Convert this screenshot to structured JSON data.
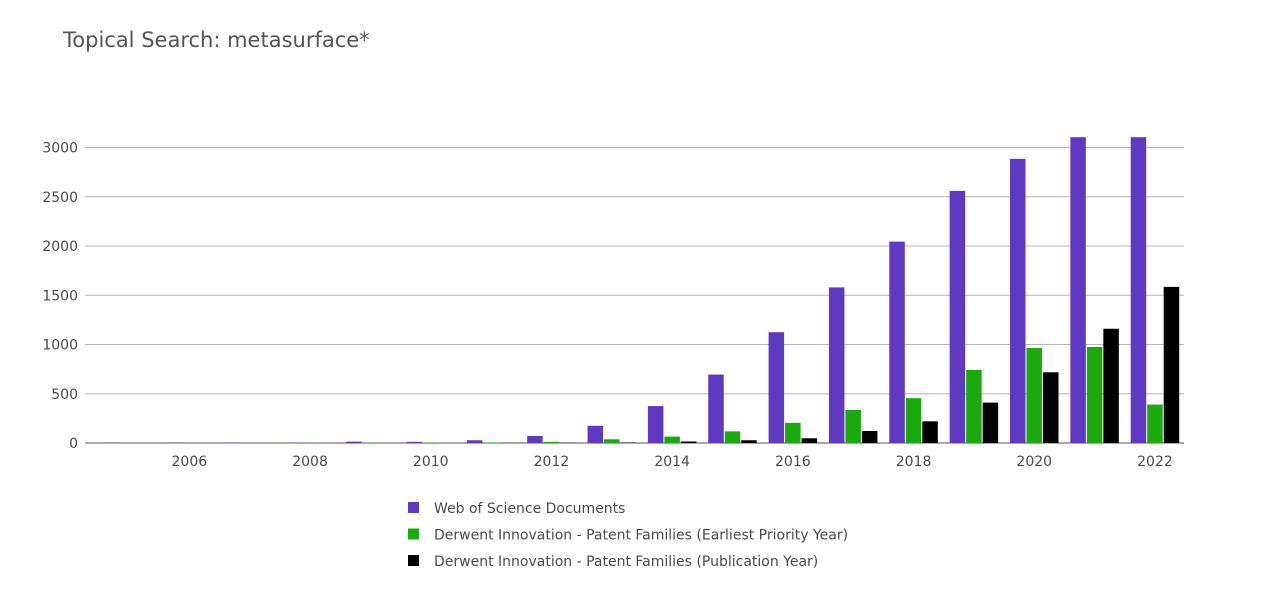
{
  "chart_data": {
    "type": "bar",
    "title": "Topical Search: metasurface*",
    "xlabel": "",
    "ylabel": "",
    "categories": [
      "2005",
      "2006",
      "2007",
      "2008",
      "2009",
      "2010",
      "2011",
      "2012",
      "2013",
      "2014",
      "2015",
      "2016",
      "2017",
      "2018",
      "2019",
      "2020",
      "2021",
      "2022"
    ],
    "x_tick_labels": [
      "2006",
      "2008",
      "2010",
      "2012",
      "2014",
      "2016",
      "2018",
      "2020",
      "2022"
    ],
    "y_tick_labels": [
      "0",
      "500",
      "1000",
      "1500",
      "2000",
      "2500",
      "3000"
    ],
    "ylim": [
      0,
      3300
    ],
    "grid": "horizontal",
    "legend_position": "bottom-center",
    "series": [
      {
        "name": "Web of Science Documents",
        "color": "#5f39c2",
        "values": [
          1,
          2,
          4,
          5,
          14,
          12,
          28,
          72,
          175,
          375,
          695,
          1125,
          1580,
          2045,
          2560,
          2885,
          3105,
          3105
        ]
      },
      {
        "name": "Derwent Innovation - Patent Families (Earliest Priority Year)",
        "color": "#1aaa0e",
        "values": [
          0,
          0,
          0,
          1,
          2,
          3,
          5,
          12,
          38,
          65,
          118,
          205,
          335,
          455,
          742,
          965,
          975,
          390
        ]
      },
      {
        "name": "Derwent Innovation - Patent Families (Publication Year)",
        "color": "#000000",
        "values": [
          0,
          0,
          0,
          0,
          0,
          0,
          1,
          3,
          5,
          15,
          28,
          48,
          122,
          220,
          410,
          718,
          1160,
          1585
        ]
      }
    ]
  }
}
